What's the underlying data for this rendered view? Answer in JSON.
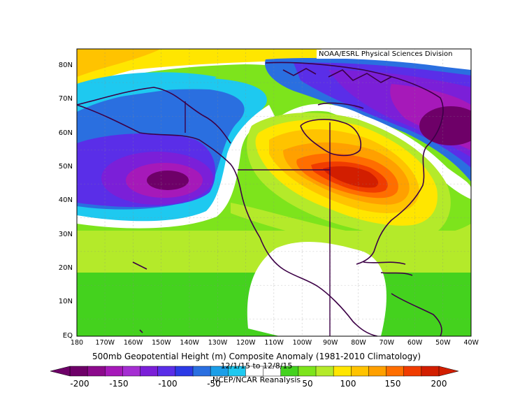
{
  "map": {
    "credit": "NOAA/ESRL Physical Sciences Division",
    "title": "500mb Geopotential Height (m) Composite Anomaly (1981-2010 Climatology)",
    "dates": "12/1/15 to 12/8/15",
    "source": "NCEP/NCAR Reanalysis",
    "lat_labels": [
      "80N",
      "70N",
      "60N",
      "50N",
      "40N",
      "30N",
      "20N",
      "10N",
      "EQ"
    ],
    "lon_labels": [
      "180",
      "170W",
      "160W",
      "150W",
      "140W",
      "130W",
      "120W",
      "110W",
      "100W",
      "90W",
      "80W",
      "70W",
      "60W",
      "50W",
      "40W"
    ],
    "lon_range": [
      180,
      40
    ],
    "lat_range": [
      0,
      85
    ],
    "colorbar": {
      "labels": [
        "-200",
        "-150",
        "-100",
        "-50",
        "50",
        "100",
        "150",
        "200"
      ],
      "colors": [
        "#6e0068",
        "#8c0a8c",
        "#a619b9",
        "#a52ed2",
        "#7b1fd8",
        "#5a2ee8",
        "#2c3ae6",
        "#2a6fe0",
        "#1b9ee8",
        "#1ec9f0",
        "#ffffff",
        "#ffffff",
        "#44d21e",
        "#7de41c",
        "#b4ea2a",
        "#ffe600",
        "#ffc300",
        "#ffa000",
        "#ff6e00",
        "#f03c00",
        "#d21e00"
      ]
    }
  }
}
